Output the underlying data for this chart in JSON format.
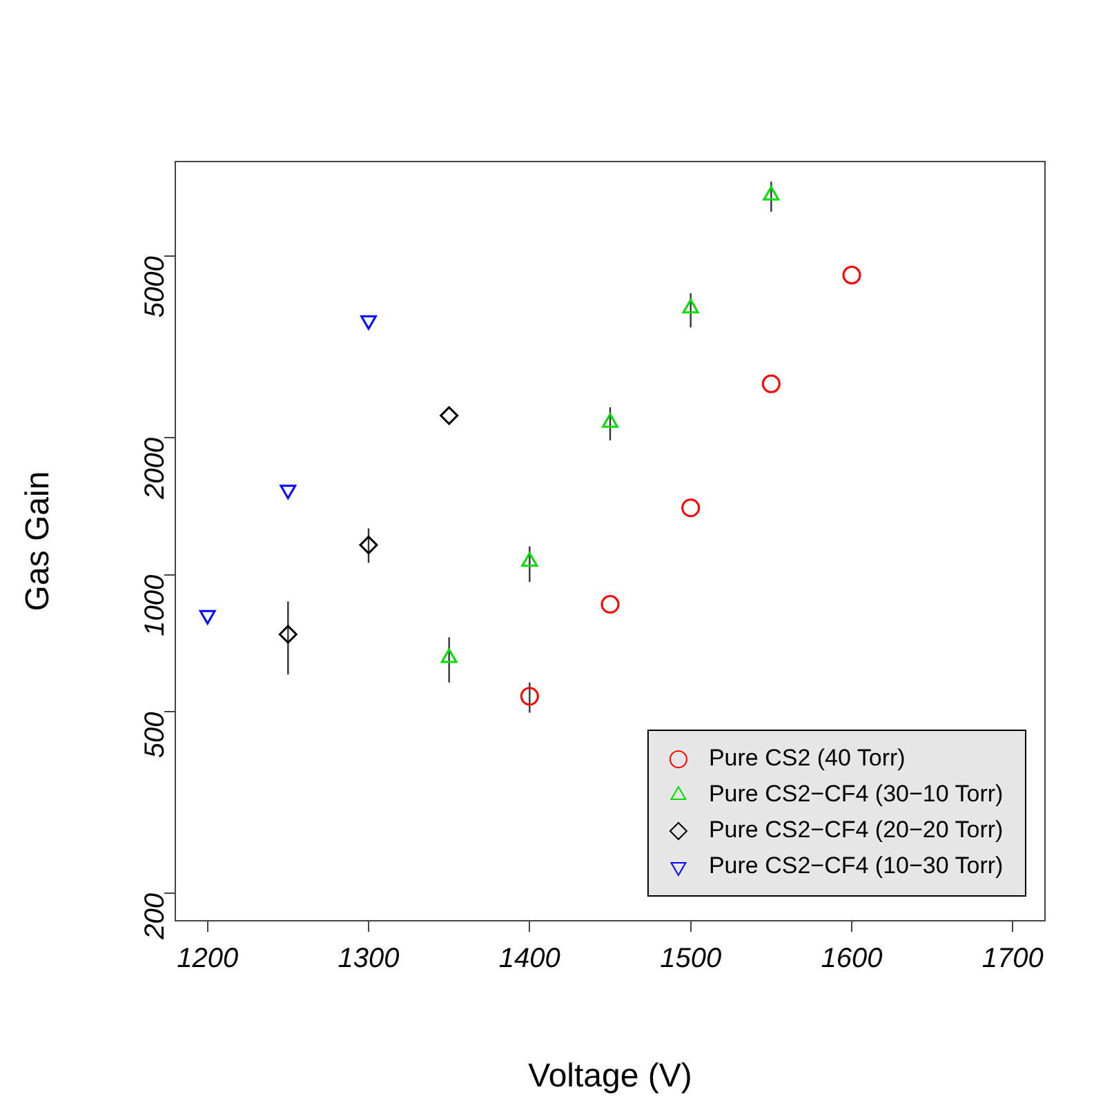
{
  "chart_data": {
    "type": "scatter",
    "xlabel": "Voltage (V)",
    "ylabel": "Gas Gain",
    "log": "y",
    "grid": false,
    "legend": "bottom right",
    "xlim": [
      1180,
      1720
    ],
    "xticks": [
      1200,
      1300,
      1400,
      1500,
      1600,
      1700
    ],
    "ylim": [
      174,
      8070
    ],
    "yticks": [
      200,
      500,
      1000,
      2000,
      5000
    ],
    "series": [
      {
        "name": "Pure CS2 (40 Torr)",
        "color": "#ff0000",
        "marker": "circle",
        "x": [
          1400,
          1450,
          1500,
          1550,
          1600
        ],
        "values": [
          541,
          861,
          1402,
          2624,
          4545
        ],
        "errors": [
          [
            498,
            580
          ],
          null,
          null,
          null,
          null
        ]
      },
      {
        "name": "Pure CS2−CF4 (30−10 Torr)",
        "color": "#00dd00",
        "marker": "triangle",
        "x": [
          1350,
          1400,
          1450,
          1500,
          1550
        ],
        "values": [
          657,
          1069,
          2158,
          3845,
          6805
        ],
        "errors": [
          [
            580,
            729
          ],
          [
            964,
            1154
          ],
          [
            1972,
            2330
          ],
          [
            3490,
            4150
          ],
          [
            6260,
            7290
          ]
        ]
      },
      {
        "name": "Pure CS2−CF4 (20−20 Torr)",
        "color": "#000000",
        "marker": "diamond",
        "x": [
          1250,
          1300,
          1350
        ],
        "values": [
          740,
          1162,
          2235
        ],
        "errors": [
          [
            604,
            874
          ],
          [
            1062,
            1264
          ],
          null
        ]
      },
      {
        "name": "Pure CS2−CF4 (10−30 Torr)",
        "color": "#0000ff",
        "marker": "triangle-down",
        "x": [
          1200,
          1250,
          1300
        ],
        "values": [
          815,
          1535,
          3614
        ],
        "errors": [
          null,
          null,
          null
        ]
      }
    ]
  }
}
